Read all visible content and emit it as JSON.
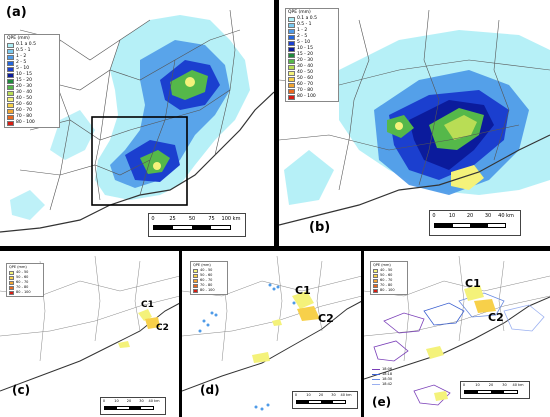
{
  "panels": {
    "a": {
      "label": "(a)"
    },
    "b": {
      "label": "(b)"
    },
    "c": {
      "label": "(c)"
    },
    "d": {
      "label": "(d)"
    },
    "e": {
      "label": "(e)"
    }
  },
  "legend_main": {
    "title": "QPE (mm)",
    "items": [
      {
        "label": "0.1 a 0.5",
        "color": "#aeeef6"
      },
      {
        "label": "0.5 - 1",
        "color": "#79c9f0"
      },
      {
        "label": "1 - 2",
        "color": "#4f9be8"
      },
      {
        "label": "2 - 5",
        "color": "#2266dd"
      },
      {
        "label": "5 - 10",
        "color": "#1b3fcf"
      },
      {
        "label": "10 - 15",
        "color": "#0b1b9c"
      },
      {
        "label": "15 - 20",
        "color": "#1d8a3c"
      },
      {
        "label": "20 - 30",
        "color": "#55b84a"
      },
      {
        "label": "30 - 40",
        "color": "#b9dd55"
      },
      {
        "label": "40 - 50",
        "color": "#f4f27a"
      },
      {
        "label": "50 - 60",
        "color": "#f7d04a"
      },
      {
        "label": "60 - 70",
        "color": "#f1a433"
      },
      {
        "label": "70 - 80",
        "color": "#e8681f"
      },
      {
        "label": "80 - 100",
        "color": "#d81d14"
      }
    ]
  },
  "legend_small": {
    "title": "QPE (mm)",
    "items": [
      {
        "label": "40 - 50",
        "color": "#f4f27a"
      },
      {
        "label": "50 - 60",
        "color": "#f7d04a"
      },
      {
        "label": "60 - 70",
        "color": "#f1a433"
      },
      {
        "label": "70 - 80",
        "color": "#e8681f"
      },
      {
        "label": "80 - 100",
        "color": "#d81d14"
      }
    ]
  },
  "legend_e_lines": [
    {
      "label": "18:06",
      "color": "#7a3fb8"
    },
    {
      "label": "18:18",
      "color": "#3a5fd0"
    },
    {
      "label": "18:30",
      "color": "#6a8be0"
    },
    {
      "label": "18:42",
      "color": "#9ab0f0"
    }
  ],
  "scale_a": {
    "ticks": [
      "0",
      "25",
      "50",
      "75",
      "100 km"
    ]
  },
  "scale_b": {
    "ticks": [
      "0",
      "10",
      "20",
      "30",
      "40 km"
    ]
  },
  "scale_small": {
    "ticks": [
      "0",
      "10",
      "20",
      "30",
      "40 km"
    ]
  },
  "cells": {
    "c1": "C1",
    "c2": "C2"
  },
  "colors": {
    "border": "#555555",
    "coast": "#333333",
    "inset_box": "#000000"
  }
}
